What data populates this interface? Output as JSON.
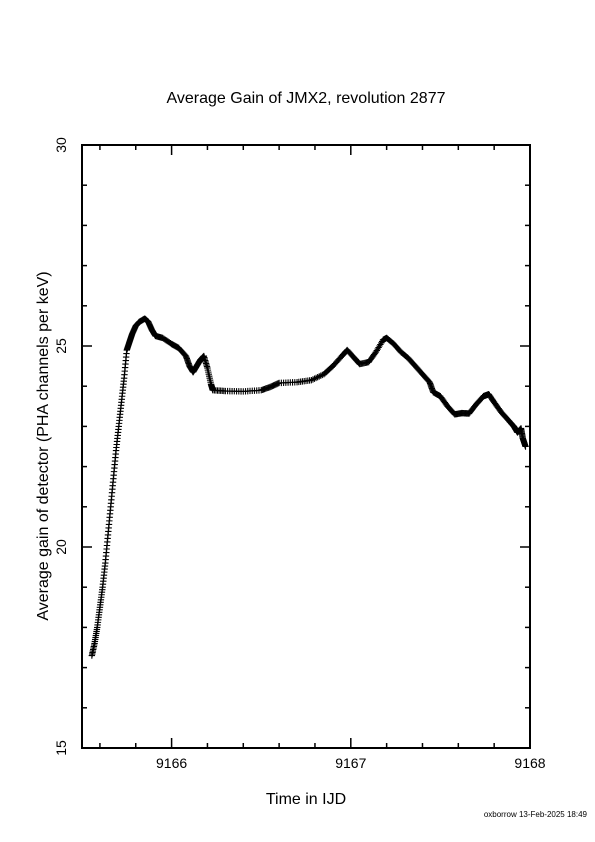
{
  "chart_data": {
    "type": "scatter",
    "title": "Average Gain of JMX2, revolution 2877",
    "xlabel": "Time in IJD",
    "ylabel": "Average gain of detector (PHA channels per keV)",
    "xlim": [
      9165.5,
      9168
    ],
    "ylim": [
      15,
      30
    ],
    "xticks": [
      9166,
      9167,
      9168
    ],
    "yticks": [
      15,
      20,
      25,
      30
    ],
    "x_minor_step": 0.2,
    "y_minor_step": 1,
    "marker": "plus",
    "grid": false,
    "series": [
      {
        "points": [
          [
            9165.555,
            17.3
          ],
          [
            9165.57,
            17.6
          ],
          [
            9165.585,
            18.0
          ],
          [
            9165.6,
            18.5
          ],
          [
            9165.615,
            19.0
          ],
          [
            9165.63,
            19.6
          ],
          [
            9165.645,
            20.3
          ],
          [
            9165.66,
            21.0
          ],
          [
            9165.675,
            21.7
          ],
          [
            9165.69,
            22.4
          ],
          [
            9165.705,
            23.0
          ],
          [
            9165.72,
            23.6
          ],
          [
            9165.735,
            24.2
          ],
          [
            9165.75,
            24.9
          ],
          [
            9165.765,
            25.1
          ],
          [
            9165.78,
            25.3
          ],
          [
            9165.8,
            25.5
          ],
          [
            9165.82,
            25.6
          ],
          [
            9165.85,
            25.68
          ],
          [
            9165.87,
            25.6
          ],
          [
            9165.89,
            25.4
          ],
          [
            9165.91,
            25.25
          ],
          [
            9165.95,
            25.2
          ],
          [
            9166.0,
            25.05
          ],
          [
            9166.04,
            24.95
          ],
          [
            9166.08,
            24.75
          ],
          [
            9166.1,
            24.5
          ],
          [
            9166.12,
            24.35
          ],
          [
            9166.14,
            24.5
          ],
          [
            9166.16,
            24.65
          ],
          [
            9166.18,
            24.75
          ],
          [
            9166.2,
            24.45
          ],
          [
            9166.22,
            24.05
          ],
          [
            9166.23,
            23.9
          ],
          [
            9166.3,
            23.88
          ],
          [
            9166.4,
            23.87
          ],
          [
            9166.5,
            23.9
          ],
          [
            9166.55,
            23.98
          ],
          [
            9166.6,
            24.08
          ],
          [
            9166.7,
            24.1
          ],
          [
            9166.78,
            24.15
          ],
          [
            9166.85,
            24.3
          ],
          [
            9166.9,
            24.5
          ],
          [
            9166.95,
            24.75
          ],
          [
            9166.98,
            24.9
          ],
          [
            9167.02,
            24.7
          ],
          [
            9167.05,
            24.55
          ],
          [
            9167.1,
            24.6
          ],
          [
            9167.14,
            24.85
          ],
          [
            9167.18,
            25.15
          ],
          [
            9167.2,
            25.2
          ],
          [
            9167.24,
            25.05
          ],
          [
            9167.28,
            24.85
          ],
          [
            9167.32,
            24.7
          ],
          [
            9167.36,
            24.5
          ],
          [
            9167.4,
            24.3
          ],
          [
            9167.44,
            24.1
          ],
          [
            9167.46,
            23.85
          ],
          [
            9167.5,
            23.75
          ],
          [
            9167.54,
            23.5
          ],
          [
            9167.58,
            23.3
          ],
          [
            9167.62,
            23.33
          ],
          [
            9167.66,
            23.32
          ],
          [
            9167.7,
            23.55
          ],
          [
            9167.74,
            23.75
          ],
          [
            9167.77,
            23.8
          ],
          [
            9167.8,
            23.6
          ],
          [
            9167.84,
            23.35
          ],
          [
            9167.88,
            23.15
          ],
          [
            9167.91,
            23.0
          ],
          [
            9167.93,
            22.85
          ],
          [
            9167.95,
            22.95
          ],
          [
            9167.96,
            22.7
          ],
          [
            9167.975,
            22.5
          ]
        ]
      }
    ]
  },
  "footer": "oxborrow 13-Feb-2025 18:49"
}
